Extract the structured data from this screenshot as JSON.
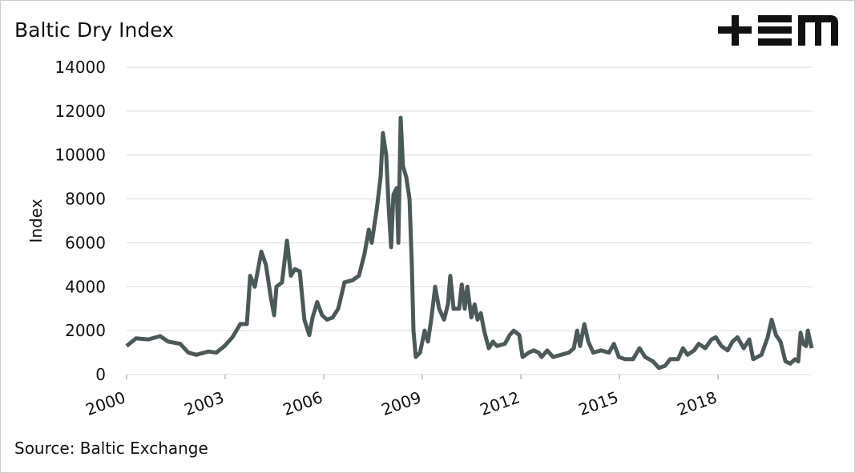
{
  "chart_data": {
    "type": "line",
    "title": "Baltic Dry Index",
    "ylabel": "Index",
    "source": "Source: Baltic Exchange",
    "x": [
      2000.0,
      2000.29,
      2000.66,
      2001.02,
      2001.27,
      2001.63,
      2001.88,
      2002.12,
      2002.49,
      2002.73,
      2002.98,
      2003.22,
      2003.46,
      2003.66,
      2003.76,
      2003.9,
      2004.1,
      2004.24,
      2004.39,
      2004.49,
      2004.56,
      2004.73,
      2004.88,
      2005.0,
      2005.12,
      2005.27,
      2005.41,
      2005.56,
      2005.66,
      2005.8,
      2005.95,
      2006.1,
      2006.27,
      2006.44,
      2006.63,
      2006.88,
      2007.07,
      2007.24,
      2007.37,
      2007.46,
      2007.61,
      2007.73,
      2007.8,
      2007.9,
      2007.98,
      2008.05,
      2008.12,
      2008.22,
      2008.27,
      2008.34,
      2008.41,
      2008.51,
      2008.61,
      2008.68,
      2008.73,
      2008.8,
      2008.93,
      2009.07,
      2009.17,
      2009.27,
      2009.39,
      2009.51,
      2009.66,
      2009.78,
      2009.85,
      2009.95,
      2010.12,
      2010.2,
      2010.29,
      2010.37,
      2010.49,
      2010.59,
      2010.68,
      2010.78,
      2010.88,
      2011.02,
      2011.15,
      2011.27,
      2011.51,
      2011.66,
      2011.78,
      2011.95,
      2012.05,
      2012.24,
      2012.39,
      2012.54,
      2012.63,
      2012.8,
      2012.98,
      2013.22,
      2013.46,
      2013.61,
      2013.71,
      2013.8,
      2013.93,
      2014.05,
      2014.2,
      2014.44,
      2014.68,
      2014.83,
      2014.98,
      2015.17,
      2015.41,
      2015.61,
      2015.78,
      2016.02,
      2016.2,
      2016.39,
      2016.54,
      2016.78,
      2016.93,
      2017.07,
      2017.27,
      2017.41,
      2017.61,
      2017.8,
      2017.93,
      2018.1,
      2018.29,
      2018.44,
      2018.59,
      2018.78,
      2018.95,
      2019.07,
      2019.32,
      2019.51,
      2019.63,
      2019.76,
      2019.9,
      2020.05,
      2020.2,
      2020.34,
      2020.44,
      2020.51,
      2020.59,
      2020.68,
      2020.73,
      2020.85
    ],
    "series": [
      {
        "color": "#4b5a58",
        "values": [
          1300,
          1650,
          1600,
          1750,
          1500,
          1400,
          1000,
          900,
          1050,
          1000,
          1300,
          1700,
          2300,
          2300,
          4500,
          4000,
          5600,
          5000,
          3500,
          2700,
          4000,
          4200,
          6100,
          4500,
          4800,
          4700,
          2500,
          1800,
          2600,
          3300,
          2700,
          2500,
          2600,
          3000,
          4200,
          4300,
          4500,
          5500,
          6600,
          6000,
          7500,
          9000,
          11000,
          10000,
          7500,
          5800,
          8200,
          8500,
          6000,
          11700,
          9500,
          9000,
          8000,
          5000,
          2000,
          800,
          1000,
          2000,
          1500,
          2500,
          4000,
          3000,
          2500,
          3200,
          4500,
          3000,
          3000,
          4100,
          3000,
          4000,
          2600,
          3200,
          2500,
          2800,
          2000,
          1200,
          1500,
          1300,
          1400,
          1800,
          2000,
          1800,
          800,
          1000,
          1100,
          1000,
          800,
          1100,
          800,
          900,
          1000,
          1200,
          2000,
          1300,
          2300,
          1500,
          1000,
          1100,
          1000,
          1400,
          800,
          700,
          700,
          1200,
          800,
          600,
          300,
          400,
          700,
          700,
          1200,
          900,
          1100,
          1400,
          1200,
          1600,
          1700,
          1300,
          1100,
          1500,
          1700,
          1200,
          1600,
          700,
          900,
          1700,
          2500,
          1800,
          1500,
          600,
          500,
          700,
          600,
          1900,
          1400,
          1300,
          2000,
          1200
        ]
      }
    ],
    "xlim": [
      2000,
      2020.85
    ],
    "xticks": [
      2000,
      2003,
      2006,
      2009,
      2012,
      2015,
      2018
    ],
    "ylim": [
      0,
      14000
    ],
    "yticks": [
      0,
      2000,
      4000,
      6000,
      8000,
      10000,
      12000,
      14000
    ],
    "grid": true
  }
}
